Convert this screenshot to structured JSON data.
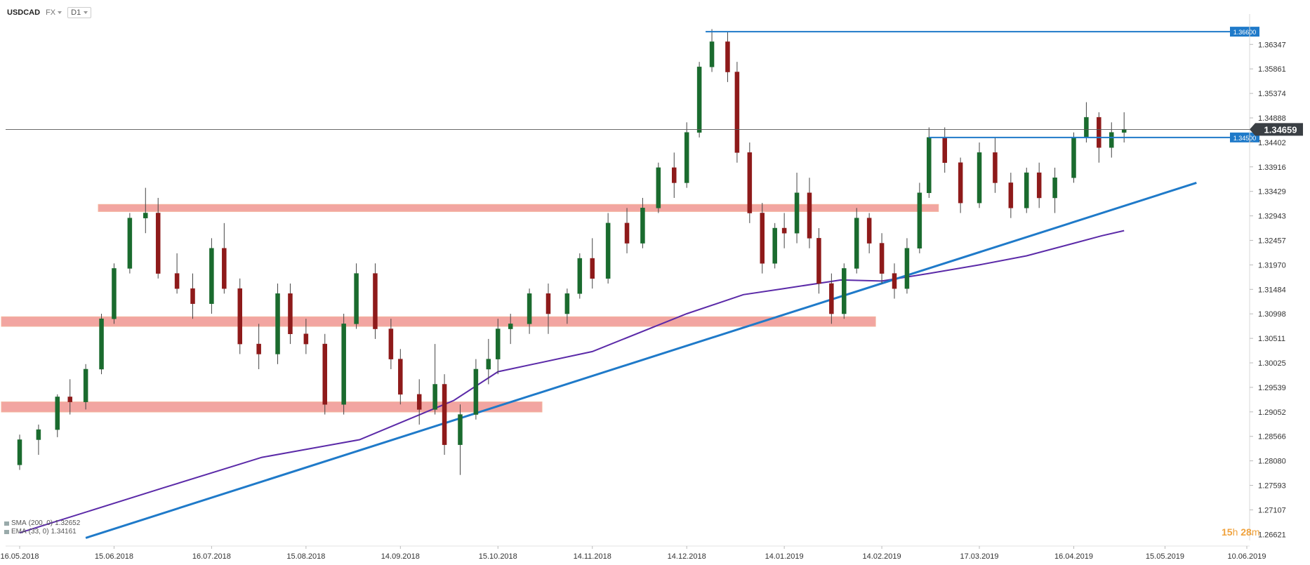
{
  "header": {
    "symbol": "USDCAD",
    "market": "FX",
    "timeframe": "D1"
  },
  "indicators": [
    {
      "name": "SMA",
      "params": "(200, 0)",
      "value": "1.32652",
      "color": "#5b2aa8"
    },
    {
      "name": "EMA",
      "params": "(33, 0)",
      "value": "1.34161",
      "color": "#5b2aa8"
    }
  ],
  "timer": {
    "hours": "15",
    "h": "h",
    "minutes": "28",
    "m": "m"
  },
  "chart_data": {
    "type": "candlestick",
    "x_tick_labels": [
      "16.05.2018",
      "15.06.2018",
      "16.07.2018",
      "15.08.2018",
      "14.09.2018",
      "15.10.2018",
      "14.11.2018",
      "14.12.2018",
      "14.01.2019",
      "14.02.2019",
      "17.03.2019",
      "16.04.2019",
      "15.05.2019",
      "10.06.2019"
    ],
    "y_tick_labels": [
      "1.36347",
      "1.35861",
      "1.35374",
      "1.34888",
      "1.34402",
      "1.33916",
      "1.33429",
      "1.32943",
      "1.32457",
      "1.31970",
      "1.31484",
      "1.30998",
      "1.30511",
      "1.30025",
      "1.29539",
      "1.29052",
      "1.28566",
      "1.28080",
      "1.27593",
      "1.27107",
      "1.26621"
    ],
    "ylim": [
      1.265,
      1.3695
    ],
    "current_price": "1.34659",
    "horizontal_levels": [
      {
        "value": 1.366,
        "label": "1.36600",
        "color": "#1f7ac9"
      },
      {
        "value": 1.345,
        "label": "1.34500",
        "color": "#1f7ac9"
      }
    ],
    "support_resistance_zones": [
      {
        "low": 1.3303,
        "high": 1.3317,
        "color": "#f09590"
      },
      {
        "low": 1.3075,
        "high": 1.3094,
        "color": "#f09590"
      },
      {
        "low": 1.2905,
        "high": 1.2925,
        "color": "#f09590"
      }
    ],
    "trendline": {
      "start": {
        "date": "06.06.2018",
        "value": 1.2655
      },
      "end": {
        "date": "25.05.2019",
        "value": 1.336
      },
      "color": "#1f7ac9"
    },
    "sma_200": [
      [
        "16.05.2018",
        1.2665
      ],
      [
        "01.07.2018",
        1.2755
      ],
      [
        "01.08.2018",
        1.2815
      ],
      [
        "01.09.2018",
        1.285
      ],
      [
        "01.10.2018",
        1.2928
      ],
      [
        "15.10.2018",
        1.2985
      ],
      [
        "14.11.2018",
        1.3025
      ],
      [
        "14.12.2018",
        1.31
      ],
      [
        "01.01.2019",
        1.3138
      ],
      [
        "14.01.2019",
        1.315
      ],
      [
        "01.02.2019",
        1.3167
      ],
      [
        "14.02.2019",
        1.3165
      ],
      [
        "01.03.2019",
        1.318
      ],
      [
        "17.03.2019",
        1.3197
      ],
      [
        "01.04.2019",
        1.3215
      ],
      [
        "16.04.2019",
        1.324
      ],
      [
        "25.04.2019",
        1.3255
      ],
      [
        "02.05.2019",
        1.3265
      ]
    ],
    "ohlc": [
      [
        "16.05.2018",
        1.28,
        1.286,
        1.279,
        1.285
      ],
      [
        "22.05.2018",
        1.285,
        1.288,
        1.282,
        1.287
      ],
      [
        "28.05.2018",
        1.287,
        1.294,
        1.2855,
        1.2935
      ],
      [
        "01.06.2018",
        1.2935,
        1.297,
        1.29,
        1.2925
      ],
      [
        "06.06.2018",
        1.2925,
        1.3,
        1.291,
        1.299
      ],
      [
        "11.06.2018",
        1.299,
        1.31,
        1.298,
        1.309
      ],
      [
        "15.06.2018",
        1.309,
        1.32,
        1.308,
        1.319
      ],
      [
        "20.06.2018",
        1.319,
        1.33,
        1.318,
        1.329
      ],
      [
        "25.06.2018",
        1.329,
        1.335,
        1.326,
        1.33
      ],
      [
        "29.06.2018",
        1.33,
        1.333,
        1.317,
        1.318
      ],
      [
        "05.07.2018",
        1.318,
        1.322,
        1.314,
        1.315
      ],
      [
        "10.07.2018",
        1.315,
        1.318,
        1.309,
        1.312
      ],
      [
        "16.07.2018",
        1.312,
        1.325,
        1.31,
        1.323
      ],
      [
        "20.07.2018",
        1.323,
        1.328,
        1.314,
        1.315
      ],
      [
        "25.07.2018",
        1.315,
        1.317,
        1.302,
        1.304
      ],
      [
        "31.07.2018",
        1.304,
        1.308,
        1.299,
        1.302
      ],
      [
        "06.08.2018",
        1.302,
        1.316,
        1.3,
        1.314
      ],
      [
        "10.08.2018",
        1.314,
        1.316,
        1.304,
        1.306
      ],
      [
        "15.08.2018",
        1.306,
        1.309,
        1.302,
        1.304
      ],
      [
        "21.08.2018",
        1.304,
        1.306,
        1.29,
        1.292
      ],
      [
        "27.08.2018",
        1.292,
        1.31,
        1.29,
        1.308
      ],
      [
        "31.08.2018",
        1.308,
        1.32,
        1.307,
        1.318
      ],
      [
        "06.09.2018",
        1.318,
        1.32,
        1.305,
        1.307
      ],
      [
        "11.09.2018",
        1.307,
        1.309,
        1.299,
        1.301
      ],
      [
        "14.09.2018",
        1.301,
        1.303,
        1.292,
        1.294
      ],
      [
        "20.09.2018",
        1.294,
        1.297,
        1.288,
        1.291
      ],
      [
        "25.09.2018",
        1.291,
        1.304,
        1.29,
        1.296
      ],
      [
        "28.09.2018",
        1.296,
        1.298,
        1.282,
        1.284
      ],
      [
        "03.10.2018",
        1.284,
        1.292,
        1.278,
        1.29
      ],
      [
        "08.10.2018",
        1.29,
        1.301,
        1.289,
        1.299
      ],
      [
        "12.10.2018",
        1.299,
        1.305,
        1.296,
        1.301
      ],
      [
        "15.10.2018",
        1.301,
        1.309,
        1.298,
        1.307
      ],
      [
        "19.10.2018",
        1.307,
        1.31,
        1.304,
        1.308
      ],
      [
        "25.10.2018",
        1.308,
        1.315,
        1.306,
        1.314
      ],
      [
        "31.10.2018",
        1.314,
        1.316,
        1.306,
        1.31
      ],
      [
        "06.11.2018",
        1.31,
        1.315,
        1.308,
        1.314
      ],
      [
        "10.11.2018",
        1.314,
        1.322,
        1.313,
        1.321
      ],
      [
        "14.11.2018",
        1.321,
        1.325,
        1.315,
        1.317
      ],
      [
        "19.11.2018",
        1.317,
        1.33,
        1.316,
        1.328
      ],
      [
        "25.11.2018",
        1.328,
        1.331,
        1.322,
        1.324
      ],
      [
        "30.11.2018",
        1.324,
        1.333,
        1.323,
        1.331
      ],
      [
        "05.12.2018",
        1.331,
        1.34,
        1.33,
        1.339
      ],
      [
        "10.12.2018",
        1.339,
        1.342,
        1.333,
        1.336
      ],
      [
        "14.12.2018",
        1.336,
        1.348,
        1.335,
        1.346
      ],
      [
        "18.12.2018",
        1.346,
        1.36,
        1.345,
        1.359
      ],
      [
        "22.12.2018",
        1.359,
        1.3665,
        1.358,
        1.364
      ],
      [
        "27.12.2018",
        1.364,
        1.366,
        1.356,
        1.358
      ],
      [
        "30.12.2018",
        1.358,
        1.36,
        1.34,
        1.342
      ],
      [
        "03.01.2019",
        1.342,
        1.344,
        1.328,
        1.33
      ],
      [
        "07.01.2019",
        1.33,
        1.332,
        1.318,
        1.32
      ],
      [
        "11.01.2019",
        1.32,
        1.328,
        1.319,
        1.327
      ],
      [
        "14.01.2019",
        1.327,
        1.33,
        1.323,
        1.326
      ],
      [
        "18.01.2019",
        1.326,
        1.338,
        1.324,
        1.334
      ],
      [
        "22.01.2019",
        1.334,
        1.337,
        1.323,
        1.325
      ],
      [
        "25.01.2019",
        1.325,
        1.327,
        1.314,
        1.316
      ],
      [
        "29.01.2019",
        1.316,
        1.318,
        1.308,
        1.31
      ],
      [
        "02.02.2019",
        1.31,
        1.32,
        1.309,
        1.319
      ],
      [
        "06.02.2019",
        1.319,
        1.331,
        1.318,
        1.329
      ],
      [
        "10.02.2019",
        1.329,
        1.33,
        1.322,
        1.324
      ],
      [
        "14.02.2019",
        1.324,
        1.326,
        1.316,
        1.318
      ],
      [
        "18.02.2019",
        1.318,
        1.32,
        1.313,
        1.315
      ],
      [
        "22.02.2019",
        1.315,
        1.325,
        1.314,
        1.323
      ],
      [
        "26.02.2019",
        1.323,
        1.336,
        1.322,
        1.334
      ],
      [
        "01.03.2019",
        1.334,
        1.347,
        1.333,
        1.345
      ],
      [
        "06.03.2019",
        1.345,
        1.347,
        1.338,
        1.34
      ],
      [
        "11.03.2019",
        1.34,
        1.341,
        1.33,
        1.332
      ],
      [
        "17.03.2019",
        1.332,
        1.344,
        1.331,
        1.342
      ],
      [
        "22.03.2019",
        1.342,
        1.345,
        1.334,
        1.336
      ],
      [
        "27.03.2019",
        1.336,
        1.338,
        1.329,
        1.331
      ],
      [
        "01.04.2019",
        1.331,
        1.339,
        1.33,
        1.338
      ],
      [
        "05.04.2019",
        1.338,
        1.34,
        1.331,
        1.333
      ],
      [
        "10.04.2019",
        1.333,
        1.339,
        1.33,
        1.337
      ],
      [
        "16.04.2019",
        1.337,
        1.346,
        1.336,
        1.345
      ],
      [
        "20.04.2019",
        1.345,
        1.352,
        1.344,
        1.349
      ],
      [
        "24.04.2019",
        1.349,
        1.35,
        1.34,
        1.343
      ],
      [
        "28.04.2019",
        1.343,
        1.348,
        1.341,
        1.346
      ],
      [
        "02.05.2019",
        1.346,
        1.35,
        1.344,
        1.3466
      ]
    ]
  }
}
